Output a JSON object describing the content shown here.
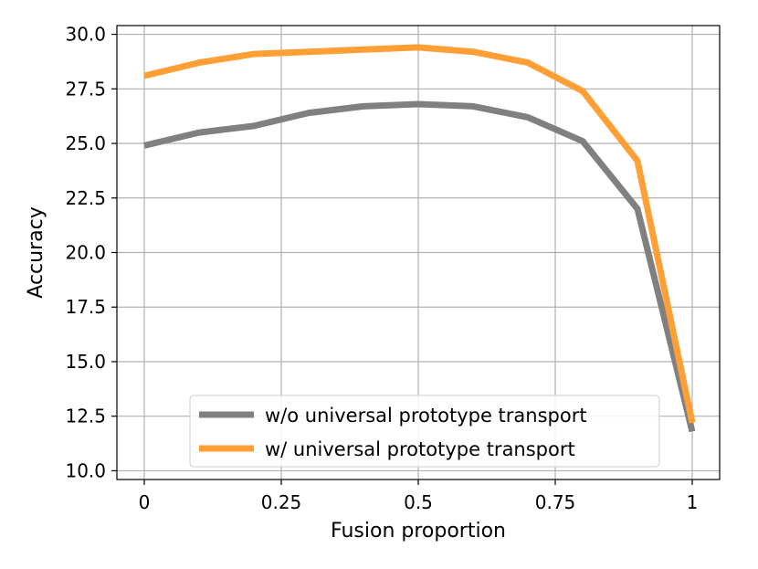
{
  "chart_data": {
    "type": "line",
    "xlabel": "Fusion proportion",
    "ylabel": "Accuracy",
    "xlim": [
      -0.05,
      1.05
    ],
    "ylim": [
      9.6,
      30.4
    ],
    "x_ticks": [
      0,
      0.25,
      0.5,
      0.75,
      1
    ],
    "x_tick_labels": [
      "0",
      "0.25",
      "0.5",
      "0.75",
      "1"
    ],
    "y_ticks": [
      10.0,
      12.5,
      15.0,
      17.5,
      20.0,
      22.5,
      25.0,
      27.5,
      30.0
    ],
    "y_tick_labels": [
      "10.0",
      "12.5",
      "15.0",
      "17.5",
      "20.0",
      "22.5",
      "25.0",
      "27.5",
      "30.0"
    ],
    "grid": true,
    "legend_position": "bottom-center",
    "x": [
      0,
      0.1,
      0.2,
      0.3,
      0.4,
      0.5,
      0.6,
      0.7,
      0.8,
      0.9,
      1.0
    ],
    "series": [
      {
        "name": "w/o universal prototype transport",
        "color": "#808080",
        "values": [
          24.9,
          25.5,
          25.8,
          26.4,
          26.7,
          26.8,
          26.7,
          26.2,
          25.1,
          22.0,
          11.8
        ]
      },
      {
        "name": "w/ universal prototype transport",
        "color": "#ff9f35",
        "values": [
          28.1,
          28.7,
          29.1,
          29.2,
          29.3,
          29.4,
          29.2,
          28.7,
          27.4,
          24.2,
          12.2
        ]
      }
    ]
  }
}
